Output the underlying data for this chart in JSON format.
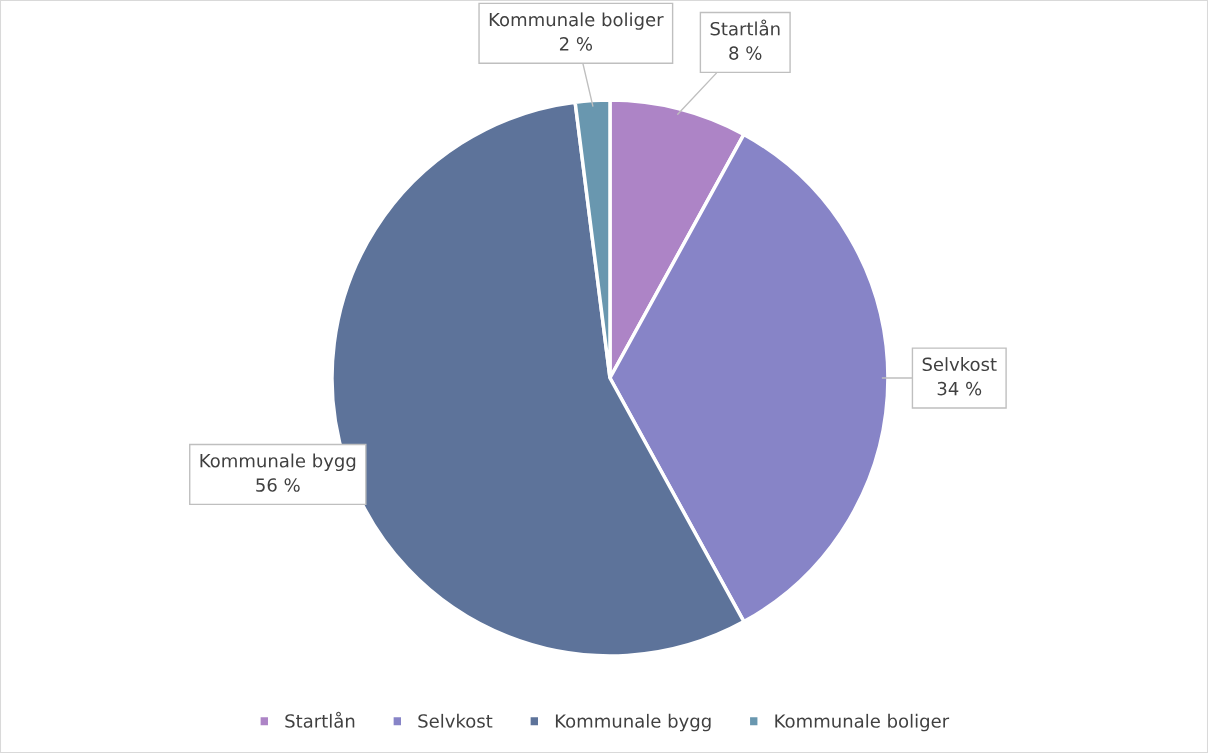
{
  "chart_data": {
    "type": "pie",
    "categories": [
      "Startlån",
      "Selvkost",
      "Kommunale bygg",
      "Kommunale boliger"
    ],
    "values": [
      8,
      34,
      56,
      2
    ],
    "colors": [
      "#ad84c6",
      "#8784c7",
      "#5d739a",
      "#6997af"
    ],
    "value_labels": [
      "8 %",
      "34 %",
      "56 %",
      "2 %"
    ],
    "legend": "bottom"
  }
}
